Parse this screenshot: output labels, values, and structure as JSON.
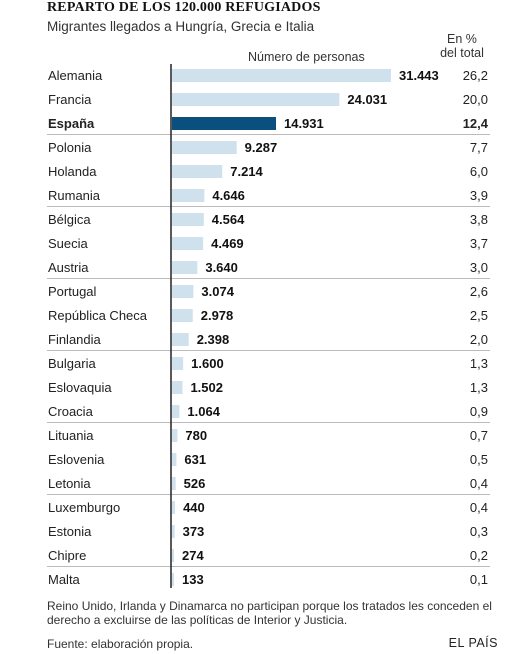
{
  "title": "REPARTO DE LOS 120.000 REFUGIADOS",
  "subtitle": "Migrantes llegados a Hungría, Grecia e Italia",
  "measure_label": "Número de personas",
  "percent_header_line1": "En %",
  "percent_header_line2": "del total",
  "note": "Reino Unido, Irlanda y Dinamarca no participan porque los tratados les conceden el derecho a excluirse de las políticas de Interior y Justicia.",
  "source": "Fuente: elaboración propia.",
  "brand": "EL PAÍS",
  "colors": {
    "bar": "#cfe1ed",
    "highlight": "#0a4f7e",
    "separator": "#bbbbbb"
  },
  "chart_data": {
    "type": "bar",
    "orientation": "horizontal",
    "highlight": "España",
    "categories": [
      "Alemania",
      "Francia",
      "España",
      "Polonia",
      "Holanda",
      "Rumania",
      "Bélgica",
      "Suecia",
      "Austria",
      "Portugal",
      "República Checa",
      "Finlandia",
      "Bulgaria",
      "Eslovaquia",
      "Croacia",
      "Lituania",
      "Eslovenia",
      "Letonia",
      "Luxemburgo",
      "Estonia",
      "Chipre",
      "Malta"
    ],
    "values": [
      31443,
      24031,
      14931,
      9287,
      7214,
      4646,
      4564,
      4469,
      3640,
      3074,
      2978,
      2398,
      1600,
      1502,
      1064,
      780,
      631,
      526,
      440,
      373,
      274,
      133
    ],
    "value_labels": [
      "31.443",
      "24.031",
      "14.931",
      "9.287",
      "7.214",
      "4.646",
      "4.564",
      "4.469",
      "3.640",
      "3.074",
      "2.978",
      "2.398",
      "1.600",
      "1.502",
      "1.064",
      "780",
      "631",
      "526",
      "440",
      "373",
      "274",
      "133"
    ],
    "percent_labels": [
      "26,2",
      "20,0",
      "12,4",
      "7,7",
      "6,0",
      "3,9",
      "3,8",
      "3,7",
      "3,0",
      "2,6",
      "2,5",
      "2,0",
      "1,3",
      "1,3",
      "0,9",
      "0,7",
      "0,5",
      "0,4",
      "0,4",
      "0,3",
      "0,2",
      "0,1"
    ]
  }
}
